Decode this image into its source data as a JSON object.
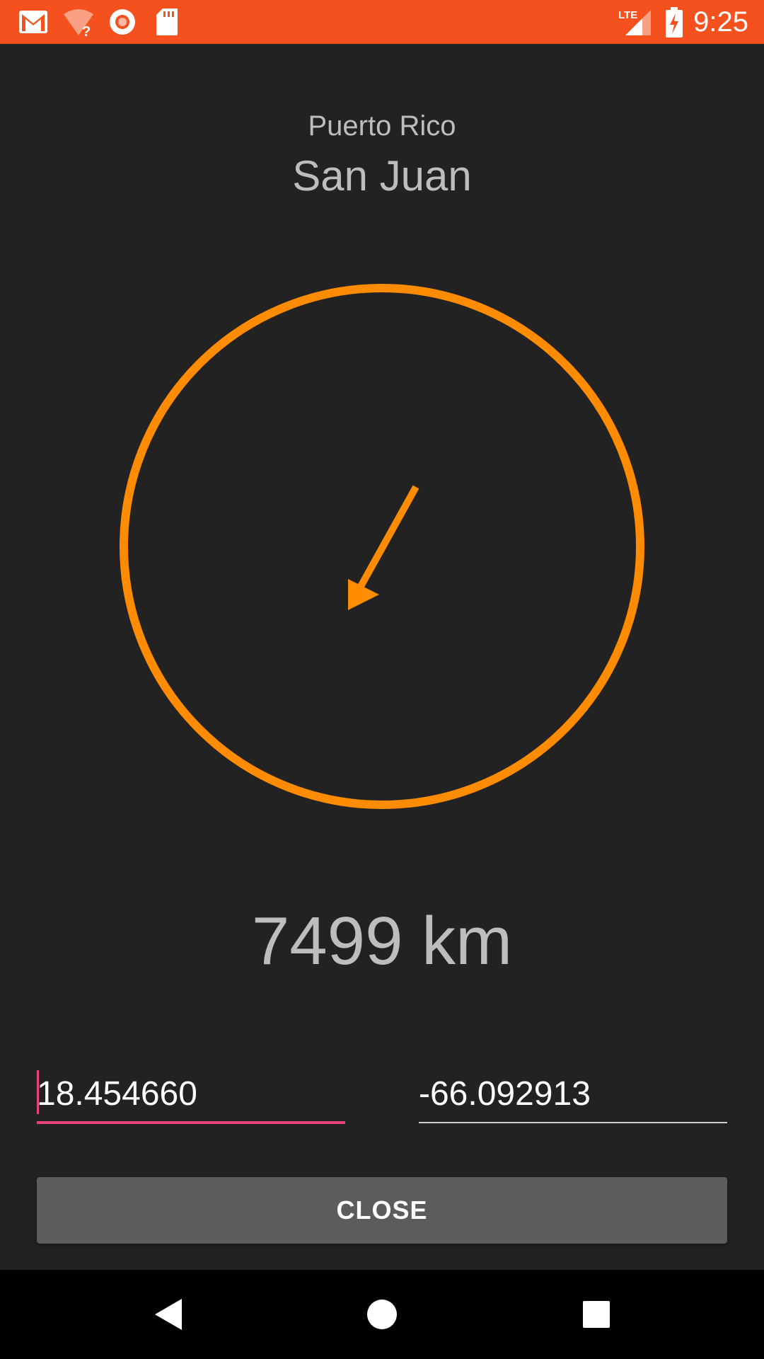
{
  "status_bar": {
    "time": "9:25",
    "icons": [
      "gmail-icon",
      "wifi-question-icon",
      "record-icon",
      "sd-card-icon",
      "lte-signal-icon",
      "battery-charging-icon"
    ],
    "background": "#f4511e"
  },
  "location": {
    "region": "Puerto Rico",
    "city": "San Juan"
  },
  "compass": {
    "ring_color": "#ff8c00",
    "arrow_color": "#ff8c00"
  },
  "distance": {
    "text": "7499 km"
  },
  "inputs": {
    "latitude": "18.454660",
    "longitude": "-66.092913",
    "focus_color": "#e8437a"
  },
  "actions": {
    "close_label": "CLOSE"
  },
  "nav_bar": {
    "back": "back-icon",
    "home": "home-icon",
    "recents": "recents-icon"
  }
}
